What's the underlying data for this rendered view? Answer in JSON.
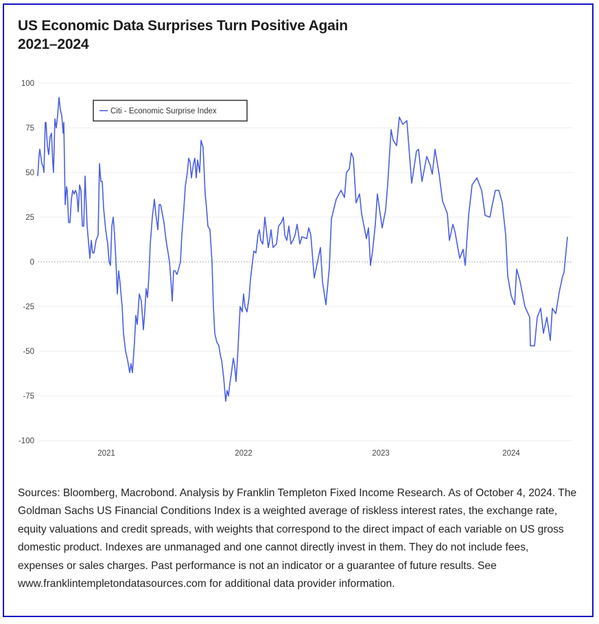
{
  "title_line1": "US Economic Data Surprises Turn Positive Again",
  "title_line2": "2021–2024",
  "notes": "Sources: Bloomberg, Macrobond. Analysis by Franklin Templeton Fixed Income Research. As of October 4, 2024. The Goldman Sachs US Financial Conditions Index is a weighted average of riskless interest rates, the exchange rate, equity valuations and credit spreads, with weights that correspond to the direct impact of each variable on US gross domestic product. Indexes are unmanaged and one cannot directly invest in them. They do not include fees, expenses or sales charges. Past performance is not an indicator or a guarantee of future results. See www.franklintempletondatasources.com for additional data provider information.",
  "colors": {
    "line": "#4a5fe0",
    "frame": "#1414c8"
  },
  "chart_data": {
    "type": "line",
    "title": "US Economic Data Surprises Turn Positive Again 2021–2024",
    "xlabel": "",
    "ylabel": "",
    "ylim": [
      -100,
      100
    ],
    "yticks": [
      "100",
      "75",
      "50",
      "25",
      "0",
      "-25",
      "-50",
      "-75",
      "-100"
    ],
    "ytick_values": [
      100,
      75,
      50,
      25,
      0,
      -25,
      -50,
      -75,
      -100
    ],
    "xticks": [
      "2021",
      "2022",
      "2023",
      "2024"
    ],
    "xtick_values": [
      2021,
      2022,
      2023,
      2024
    ],
    "xlim": [
      2020.5,
      2024.4
    ],
    "grid": true,
    "legend": {
      "position": "top-left",
      "entries": [
        "Citi - Economic Surprise Index"
      ]
    },
    "series": [
      {
        "name": "Citi - Economic Surprise Index",
        "points": [
          [
            2020.5,
            48
          ],
          [
            2020.51,
            60
          ],
          [
            2020.515,
            63
          ],
          [
            2020.53,
            55
          ],
          [
            2020.54,
            53
          ],
          [
            2020.545,
            50
          ],
          [
            2020.555,
            78
          ],
          [
            2020.56,
            78
          ],
          [
            2020.57,
            65
          ],
          [
            2020.58,
            60
          ],
          [
            2020.59,
            70
          ],
          [
            2020.6,
            72
          ],
          [
            2020.61,
            55
          ],
          [
            2020.615,
            50
          ],
          [
            2020.625,
            80
          ],
          [
            2020.635,
            75
          ],
          [
            2020.645,
            82
          ],
          [
            2020.655,
            92
          ],
          [
            2020.665,
            85
          ],
          [
            2020.675,
            82
          ],
          [
            2020.685,
            72
          ],
          [
            2020.69,
            78
          ],
          [
            2020.7,
            32
          ],
          [
            2020.71,
            42
          ],
          [
            2020.715,
            40
          ],
          [
            2020.725,
            22
          ],
          [
            2020.735,
            22
          ],
          [
            2020.745,
            35
          ],
          [
            2020.755,
            40
          ],
          [
            2020.765,
            38
          ],
          [
            2020.775,
            40
          ],
          [
            2020.785,
            38
          ],
          [
            2020.795,
            28
          ],
          [
            2020.805,
            43
          ],
          [
            2020.815,
            40
          ],
          [
            2020.825,
            20
          ],
          [
            2020.835,
            20
          ],
          [
            2020.845,
            48
          ],
          [
            2020.86,
            20
          ],
          [
            2020.88,
            2
          ],
          [
            2020.89,
            12
          ],
          [
            2020.9,
            5
          ],
          [
            2020.91,
            5
          ],
          [
            2020.925,
            12
          ],
          [
            2020.94,
            15
          ],
          [
            2020.95,
            55
          ],
          [
            2020.96,
            45
          ],
          [
            2020.97,
            45
          ],
          [
            2020.98,
            30
          ],
          [
            2020.995,
            18
          ],
          [
            2021.01,
            10
          ],
          [
            2021.02,
            0
          ],
          [
            2021.03,
            -2
          ],
          [
            2021.04,
            20
          ],
          [
            2021.05,
            25
          ],
          [
            2021.06,
            15
          ],
          [
            2021.07,
            0
          ],
          [
            2021.08,
            -18
          ],
          [
            2021.09,
            -5
          ],
          [
            2021.1,
            -12
          ],
          [
            2021.115,
            -25
          ],
          [
            2021.125,
            -40
          ],
          [
            2021.14,
            -50
          ],
          [
            2021.155,
            -55
          ],
          [
            2021.17,
            -62
          ],
          [
            2021.18,
            -57
          ],
          [
            2021.19,
            -62
          ],
          [
            2021.205,
            -45
          ],
          [
            2021.215,
            -30
          ],
          [
            2021.225,
            -35
          ],
          [
            2021.24,
            -18
          ],
          [
            2021.255,
            -22
          ],
          [
            2021.27,
            -38
          ],
          [
            2021.28,
            -28
          ],
          [
            2021.29,
            -15
          ],
          [
            2021.3,
            -20
          ],
          [
            2021.31,
            -8
          ],
          [
            2021.32,
            10
          ],
          [
            2021.335,
            25
          ],
          [
            2021.35,
            35
          ],
          [
            2021.36,
            27
          ],
          [
            2021.375,
            18
          ],
          [
            2021.385,
            32
          ],
          [
            2021.395,
            32
          ],
          [
            2021.405,
            28
          ],
          [
            2021.42,
            22
          ],
          [
            2021.435,
            12
          ],
          [
            2021.45,
            5
          ],
          [
            2021.46,
            0
          ],
          [
            2021.47,
            -10
          ],
          [
            2021.48,
            -22
          ],
          [
            2021.49,
            -5
          ],
          [
            2021.5,
            -5
          ],
          [
            2021.515,
            -7
          ],
          [
            2021.53,
            -3
          ],
          [
            2021.54,
            0
          ],
          [
            2021.55,
            15
          ],
          [
            2021.565,
            30
          ],
          [
            2021.575,
            42
          ],
          [
            2021.59,
            50
          ],
          [
            2021.6,
            58
          ],
          [
            2021.61,
            56
          ],
          [
            2021.62,
            47
          ],
          [
            2021.635,
            55
          ],
          [
            2021.645,
            58
          ],
          [
            2021.655,
            47
          ],
          [
            2021.665,
            57
          ],
          [
            2021.68,
            50
          ],
          [
            2021.69,
            68
          ],
          [
            2021.705,
            64
          ],
          [
            2021.72,
            38
          ],
          [
            2021.73,
            30
          ],
          [
            2021.74,
            20
          ],
          [
            2021.755,
            18
          ],
          [
            2021.77,
            0
          ],
          [
            2021.78,
            -25
          ],
          [
            2021.79,
            -40
          ],
          [
            2021.805,
            -45
          ],
          [
            2021.82,
            -47
          ],
          [
            2021.83,
            -52
          ],
          [
            2021.84,
            -55
          ],
          [
            2021.855,
            -65
          ],
          [
            2021.87,
            -78
          ],
          [
            2021.88,
            -72
          ],
          [
            2021.89,
            -75
          ],
          [
            2021.9,
            -68
          ],
          [
            2021.91,
            -63
          ],
          [
            2021.925,
            -54
          ],
          [
            2021.935,
            -58
          ],
          [
            2021.945,
            -67
          ],
          [
            2021.955,
            -55
          ],
          [
            2021.965,
            -40
          ],
          [
            2021.975,
            -25
          ],
          [
            2021.99,
            -28
          ],
          [
            2022.0,
            -18
          ],
          [
            2022.01,
            -25
          ],
          [
            2022.025,
            -28
          ],
          [
            2022.04,
            -20
          ],
          [
            2022.05,
            -10
          ],
          [
            2022.065,
            0
          ],
          [
            2022.075,
            6
          ],
          [
            2022.09,
            5
          ],
          [
            2022.105,
            15
          ],
          [
            2022.115,
            18
          ],
          [
            2022.125,
            12
          ],
          [
            2022.14,
            10
          ],
          [
            2022.155,
            25
          ],
          [
            2022.17,
            15
          ],
          [
            2022.18,
            8
          ],
          [
            2022.19,
            12
          ],
          [
            2022.2,
            18
          ],
          [
            2022.215,
            8
          ],
          [
            2022.24,
            10
          ],
          [
            2022.255,
            20
          ],
          [
            2022.275,
            22
          ],
          [
            2022.29,
            25
          ],
          [
            2022.3,
            15
          ],
          [
            2022.315,
            12
          ],
          [
            2022.33,
            20
          ],
          [
            2022.345,
            10
          ],
          [
            2022.36,
            12
          ],
          [
            2022.375,
            15
          ],
          [
            2022.39,
            21
          ],
          [
            2022.41,
            10
          ],
          [
            2022.425,
            14
          ],
          [
            2022.46,
            13
          ],
          [
            2022.475,
            19
          ],
          [
            2022.49,
            15
          ],
          [
            2022.515,
            -9
          ],
          [
            2022.56,
            8
          ],
          [
            2022.575,
            -11
          ],
          [
            2022.6,
            -24
          ],
          [
            2022.625,
            -3
          ],
          [
            2022.64,
            24
          ],
          [
            2022.675,
            35
          ],
          [
            2022.71,
            40
          ],
          [
            2022.735,
            36
          ],
          [
            2022.75,
            50
          ],
          [
            2022.77,
            52
          ],
          [
            2022.785,
            61
          ],
          [
            2022.8,
            58
          ],
          [
            2022.82,
            33
          ],
          [
            2022.845,
            38
          ],
          [
            2022.86,
            27
          ],
          [
            2022.895,
            13
          ],
          [
            2022.91,
            19
          ],
          [
            2022.925,
            -2
          ],
          [
            2022.94,
            6
          ],
          [
            2022.96,
            21
          ],
          [
            2022.975,
            38
          ],
          [
            2023.01,
            19
          ],
          [
            2023.035,
            29
          ],
          [
            2023.05,
            43
          ],
          [
            2023.075,
            74
          ],
          [
            2023.09,
            68
          ],
          [
            2023.115,
            65
          ],
          [
            2023.135,
            81
          ],
          [
            2023.16,
            77
          ],
          [
            2023.19,
            79
          ],
          [
            2023.21,
            59
          ],
          [
            2023.225,
            44
          ],
          [
            2023.26,
            62
          ],
          [
            2023.275,
            63
          ],
          [
            2023.3,
            45
          ],
          [
            2023.335,
            59
          ],
          [
            2023.36,
            54
          ],
          [
            2023.375,
            49
          ],
          [
            2023.395,
            63
          ],
          [
            2023.425,
            49
          ],
          [
            2023.45,
            34
          ],
          [
            2023.485,
            27
          ],
          [
            2023.5,
            12
          ],
          [
            2023.525,
            21
          ],
          [
            2023.54,
            17
          ],
          [
            2023.575,
            2
          ],
          [
            2023.6,
            7
          ],
          [
            2023.615,
            -2
          ],
          [
            2023.64,
            26
          ],
          [
            2023.665,
            43
          ],
          [
            2023.7,
            47
          ],
          [
            2023.735,
            40
          ],
          [
            2023.76,
            26
          ],
          [
            2023.795,
            25
          ],
          [
            2023.81,
            31
          ],
          [
            2023.835,
            40
          ],
          [
            2023.86,
            40
          ],
          [
            2023.885,
            33
          ],
          [
            2023.91,
            15
          ],
          [
            2023.925,
            -8
          ],
          [
            2023.95,
            -19
          ],
          [
            2023.975,
            -24
          ],
          [
            2023.99,
            -4
          ],
          [
            2024.015,
            -11
          ],
          [
            2024.05,
            -25
          ],
          [
            2024.085,
            -31
          ],
          [
            2024.09,
            -47
          ],
          [
            2024.12,
            -47
          ],
          [
            2024.14,
            -31
          ],
          [
            2024.165,
            -26
          ],
          [
            2024.185,
            -40
          ],
          [
            2024.21,
            -31
          ],
          [
            2024.235,
            -44
          ],
          [
            2024.25,
            -26
          ],
          [
            2024.275,
            -29
          ],
          [
            2024.3,
            -17
          ],
          [
            2024.325,
            -8
          ],
          [
            2024.335,
            -6
          ],
          [
            2024.36,
            14
          ]
        ]
      }
    ]
  }
}
